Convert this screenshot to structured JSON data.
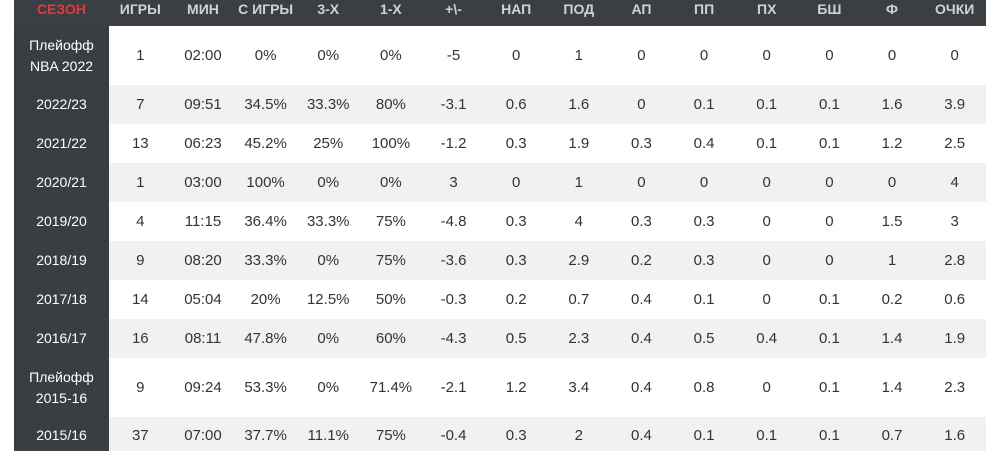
{
  "headers": [
    "СЕЗОН",
    "ИГРЫ",
    "МИН",
    "С ИГРЫ",
    "3-Х",
    "1-Х",
    "+\\-",
    "НАП",
    "ПОД",
    "АП",
    "ПП",
    "ПХ",
    "БШ",
    "Ф",
    "ОЧКИ"
  ],
  "rows": [
    {
      "season": "Плейофф NBA 2022",
      "cells": [
        "1",
        "02:00",
        "0%",
        "0%",
        "0%",
        "-5",
        "0",
        "1",
        "0",
        "0",
        "0",
        "0",
        "0",
        "0"
      ]
    },
    {
      "season": "2022/23",
      "cells": [
        "7",
        "09:51",
        "34.5%",
        "33.3%",
        "80%",
        "-3.1",
        "0.6",
        "1.6",
        "0",
        "0.1",
        "0.1",
        "0.1",
        "1.6",
        "3.9"
      ]
    },
    {
      "season": "2021/22",
      "cells": [
        "13",
        "06:23",
        "45.2%",
        "25%",
        "100%",
        "-1.2",
        "0.3",
        "1.9",
        "0.3",
        "0.4",
        "0.1",
        "0.1",
        "1.2",
        "2.5"
      ]
    },
    {
      "season": "2020/21",
      "cells": [
        "1",
        "03:00",
        "100%",
        "0%",
        "0%",
        "3",
        "0",
        "1",
        "0",
        "0",
        "0",
        "0",
        "0",
        "4"
      ]
    },
    {
      "season": "2019/20",
      "cells": [
        "4",
        "11:15",
        "36.4%",
        "33.3%",
        "75%",
        "-4.8",
        "0.3",
        "4",
        "0.3",
        "0.3",
        "0",
        "0",
        "1.5",
        "3"
      ]
    },
    {
      "season": "2018/19",
      "cells": [
        "9",
        "08:20",
        "33.3%",
        "0%",
        "75%",
        "-3.6",
        "0.3",
        "2.9",
        "0.2",
        "0.3",
        "0",
        "0",
        "1",
        "2.8"
      ]
    },
    {
      "season": "2017/18",
      "cells": [
        "14",
        "05:04",
        "20%",
        "12.5%",
        "50%",
        "-0.3",
        "0.2",
        "0.7",
        "0.4",
        "0.1",
        "0",
        "0.1",
        "0.2",
        "0.6"
      ]
    },
    {
      "season": "2016/17",
      "cells": [
        "16",
        "08:11",
        "47.8%",
        "0%",
        "60%",
        "-4.3",
        "0.5",
        "2.3",
        "0.4",
        "0.5",
        "0.4",
        "0.1",
        "1.4",
        "1.9"
      ]
    },
    {
      "season": "Плейофф 2015-16",
      "cells": [
        "9",
        "09:24",
        "53.3%",
        "0%",
        "71.4%",
        "-2.1",
        "1.2",
        "3.4",
        "0.4",
        "0.8",
        "0",
        "0.1",
        "1.4",
        "2.3"
      ]
    },
    {
      "season": "2015/16",
      "cells": [
        "37",
        "07:00",
        "37.7%",
        "11.1%",
        "75%",
        "-0.4",
        "0.3",
        "2",
        "0.4",
        "0.1",
        "0.1",
        "0.1",
        "0.7",
        "1.6"
      ]
    }
  ],
  "colors": {
    "header_bg": "#3b3e43",
    "season_bg": "#3a3d42",
    "season_header_text": "#e23a3a",
    "alt_row_bg": "#f1f1f1"
  }
}
